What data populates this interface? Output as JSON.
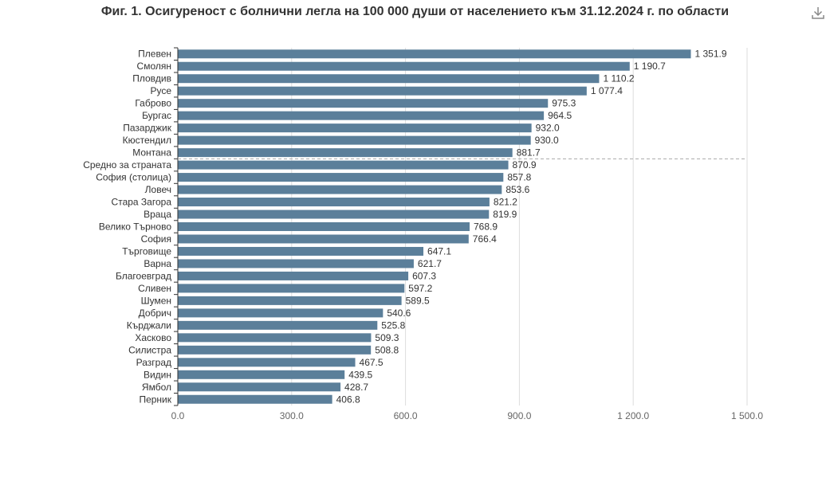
{
  "chart_data": {
    "type": "bar",
    "orientation": "horizontal",
    "title": "Фиг. 1. Осигуреност с болнични легла на 100 000 души от населението към 31.12.2024 г. по области",
    "categories": [
      "Плевен",
      "Смолян",
      "Пловдив",
      "Русе",
      "Габрово",
      "Бургас",
      "Пазарджик",
      "Кюстендил",
      "Монтана",
      "Средно за страната",
      "София (столица)",
      "Ловеч",
      "Стара Загора",
      "Враца",
      "Велико Търново",
      "София",
      "Търговище",
      "Варна",
      "Благоевград",
      "Сливен",
      "Шумен",
      "Добрич",
      "Кърджали",
      "Хасково",
      "Силистра",
      "Разград",
      "Видин",
      "Ямбол",
      "Перник"
    ],
    "values": [
      1351.9,
      1190.7,
      1110.2,
      1077.4,
      975.3,
      964.5,
      932.0,
      930.0,
      881.7,
      870.9,
      857.8,
      853.6,
      821.2,
      819.9,
      768.9,
      766.4,
      647.1,
      621.7,
      607.3,
      597.2,
      589.5,
      540.6,
      525.8,
      509.3,
      508.8,
      467.5,
      439.5,
      428.7,
      406.8
    ],
    "value_labels": [
      "1 351.9",
      "1 190.7",
      "1 110.2",
      "1 077.4",
      "975.3",
      "964.5",
      "932.0",
      "930.0",
      "881.7",
      "870.9",
      "857.8",
      "853.6",
      "821.2",
      "819.9",
      "768.9",
      "766.4",
      "647.1",
      "621.7",
      "607.3",
      "597.2",
      "589.5",
      "540.6",
      "525.8",
      "509.3",
      "508.8",
      "467.5",
      "439.5",
      "428.7",
      "406.8"
    ],
    "x_ticks": [
      0,
      300,
      600,
      900,
      1200,
      1500
    ],
    "x_tick_labels": [
      "0.0",
      "300.0",
      "600.0",
      "900.0",
      "1 200.0",
      "1 500.0"
    ],
    "xlim": [
      0,
      1500
    ],
    "reference_line": {
      "value": 870.9,
      "style": "dashed"
    },
    "grid": true,
    "xlabel": "",
    "ylabel": ""
  },
  "colors": {
    "bar": "#5b7f9a",
    "title": "#333333",
    "label": "#333333",
    "tick": "#666666",
    "grid": "#dddddd",
    "axis": "#333333",
    "reference": "#aaaaaa",
    "icon": "#888888"
  },
  "toolbar": {
    "download_icon": "download-icon"
  }
}
